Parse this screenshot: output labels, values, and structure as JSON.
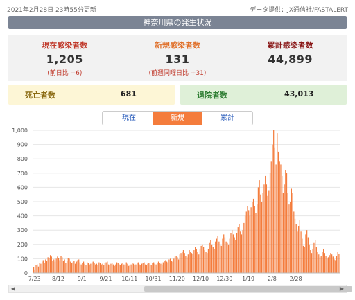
{
  "header": {
    "updated": "2021年2月28日 23時55分更新",
    "source": "データ提供：JX通信社/FASTALERT",
    "title": "神奈川県の発生状況"
  },
  "stats": {
    "current": {
      "label": "現在感染者数",
      "value": "1,205",
      "sub": "(前日比 +6)"
    },
    "new": {
      "label": "新規感染者数",
      "value": "131",
      "sub": "(前週同曜日比 +31)"
    },
    "total": {
      "label": "累計感染者数",
      "value": "44,899"
    }
  },
  "deaths": {
    "label": "死亡者数",
    "value": "681"
  },
  "recovered": {
    "label": "退院者数",
    "value": "43,013"
  },
  "tabs": [
    "現在",
    "新規",
    "累計"
  ],
  "active_tab": "新規",
  "colors": {
    "bar": "#f47c3c",
    "active_tab": "#f47c3c",
    "title_bar": "#7b8494"
  },
  "chart_data": {
    "type": "bar",
    "y_ticks": [
      "1,000",
      "900",
      "800",
      "700",
      "600",
      "500",
      "400",
      "300",
      "200",
      "100",
      "0"
    ],
    "ylim": [
      0,
      1000
    ],
    "x_ticks": [
      "7/23",
      "8/12",
      "9/1",
      "9/21",
      "10/11",
      "10/31",
      "11/20",
      "12/10",
      "12/30",
      "1/19",
      "2/8",
      "2/28"
    ],
    "start_date": "7/22",
    "values": [
      40,
      25,
      55,
      60,
      45,
      70,
      65,
      80,
      90,
      70,
      95,
      85,
      110,
      105,
      125,
      115,
      85,
      95,
      80,
      100,
      115,
      105,
      90,
      120,
      110,
      85,
      95,
      70,
      85,
      105,
      100,
      80,
      70,
      75,
      85,
      65,
      80,
      90,
      95,
      75,
      60,
      70,
      80,
      65,
      55,
      75,
      70,
      60,
      65,
      75,
      80,
      70,
      60,
      65,
      55,
      75,
      70,
      60,
      65,
      55,
      70,
      75,
      80,
      60,
      55,
      65,
      70,
      60,
      50,
      60,
      75,
      70,
      60,
      55,
      65,
      70,
      60,
      55,
      75,
      65,
      50,
      55,
      60,
      70,
      65,
      55,
      60,
      70,
      75,
      60,
      55,
      65,
      70,
      75,
      60,
      55,
      65,
      70,
      60,
      55,
      70,
      75,
      65,
      60,
      70,
      80,
      70,
      65,
      60,
      75,
      85,
      90,
      80,
      75,
      95,
      100,
      85,
      80,
      100,
      115,
      120,
      110,
      95,
      130,
      140,
      150,
      160,
      140,
      120,
      110,
      130,
      160,
      150,
      140,
      135,
      160,
      180,
      170,
      150,
      130,
      170,
      190,
      200,
      180,
      160,
      150,
      140,
      170,
      210,
      230,
      200,
      180,
      170,
      220,
      240,
      260,
      220,
      200,
      190,
      240,
      270,
      250,
      220,
      210,
      200,
      240,
      280,
      300,
      270,
      250,
      230,
      280,
      320,
      340,
      290,
      270,
      300,
      350,
      400,
      430,
      470,
      440,
      400,
      460,
      500,
      520,
      470,
      420,
      480,
      600,
      650,
      550,
      500,
      560,
      620,
      680,
      620,
      540,
      580,
      700,
      780,
      900,
      1000,
      880,
      760,
      980,
      850,
      780,
      760,
      680,
      560,
      620,
      720,
      700,
      560,
      480,
      500,
      590,
      560,
      430,
      380,
      340,
      290,
      330,
      370,
      290,
      240,
      190,
      180,
      270,
      300,
      250,
      200,
      160,
      140,
      170,
      210,
      230,
      180,
      150,
      130,
      110,
      120,
      150,
      170,
      140,
      120,
      100,
      110,
      125,
      140,
      130,
      115,
      95,
      90,
      120,
      150,
      131
    ]
  },
  "scrollbar": {
    "left_arrow": "◀",
    "right_arrow": "▶"
  }
}
